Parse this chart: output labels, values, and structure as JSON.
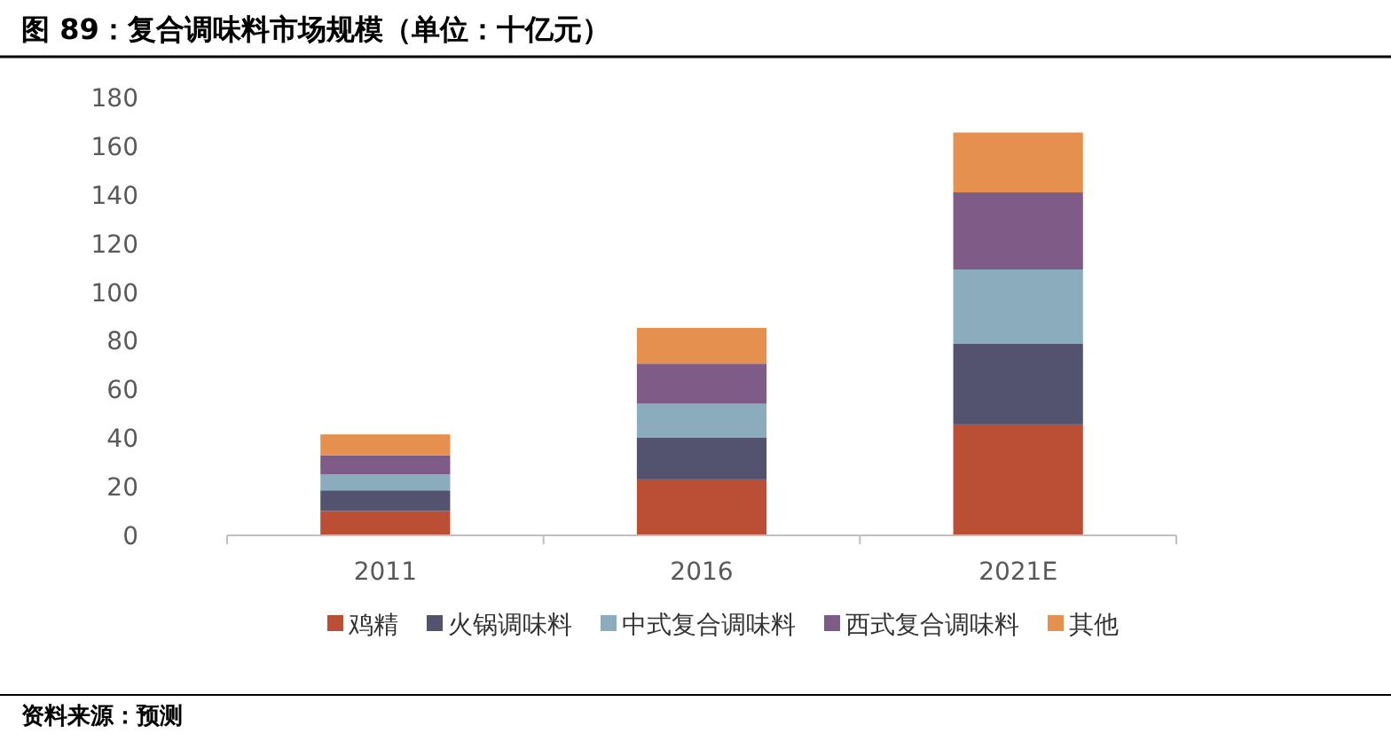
{
  "chart_data": {
    "type": "bar",
    "title": "图 89：复合调味料市场规模（单位：十亿元）",
    "categories": [
      "2011",
      "2016",
      "2021E"
    ],
    "series": [
      {
        "name": "鸡精",
        "color": "#bb4f35",
        "values": [
          10,
          23,
          45.6
        ]
      },
      {
        "name": "火锅调味料",
        "color": "#53536f",
        "values": [
          8.5,
          17.3,
          33.1
        ]
      },
      {
        "name": "中式复合调味料",
        "color": "#8aacbc",
        "values": [
          6.6,
          13.8,
          30.6
        ]
      },
      {
        "name": "西式复合调味料",
        "color": "#7f5c87",
        "values": [
          7.8,
          16.5,
          31.7
        ]
      },
      {
        "name": "其他",
        "color": "#e5904f",
        "values": [
          8.6,
          14.7,
          24.6
        ]
      }
    ],
    "stacked": true,
    "ylim": [
      0,
      180
    ],
    "yticks": [
      0,
      20,
      40,
      60,
      80,
      100,
      120,
      140,
      160,
      180
    ],
    "grid": false,
    "legend": "bottom",
    "annotations": [
      "资料来源：预测"
    ]
  }
}
